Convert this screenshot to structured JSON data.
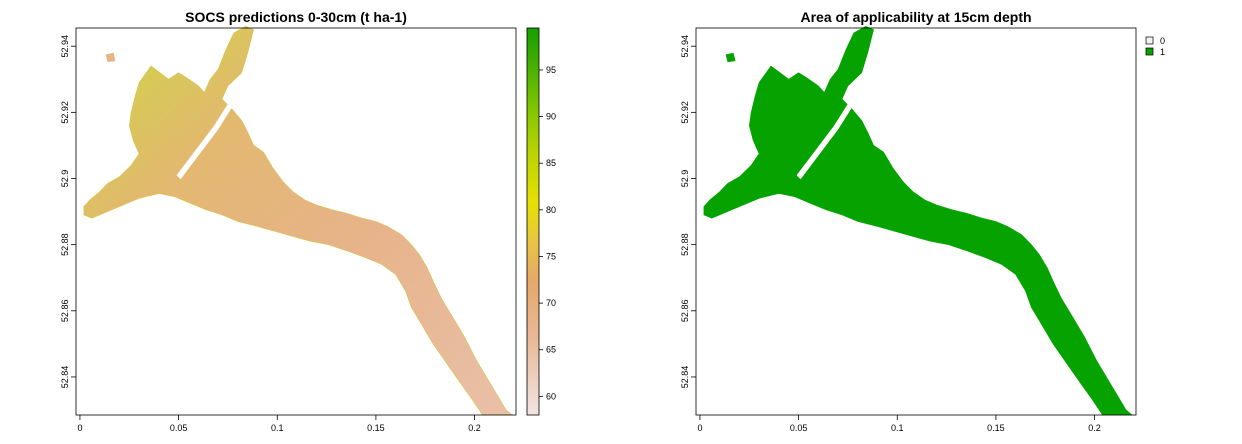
{
  "chart_data": [
    {
      "type": "heatmap",
      "title": "SOCS predictions 0-30cm (t ha-1)",
      "xlabel": "",
      "ylabel": "",
      "xlim": [
        -0.002,
        0.221
      ],
      "ylim": [
        52.8285,
        52.9455
      ],
      "x_ticks": [
        0,
        0.05,
        0.1,
        0.15,
        0.2
      ],
      "x_tick_labels": [
        "0",
        "0.05",
        "0.1",
        "0.15",
        "0.2"
      ],
      "y_ticks": [
        52.84,
        52.86,
        52.88,
        52.9,
        52.92,
        52.94
      ],
      "y_tick_labels": [
        "52.84",
        "52.86",
        "52.88",
        "52.9",
        "52.92",
        "52.94"
      ],
      "colorbar": {
        "range": [
          58,
          99.5
        ],
        "ticks": [
          60,
          65,
          70,
          75,
          80,
          85,
          90,
          95
        ],
        "tick_labels": [
          "60",
          "65",
          "70",
          "75",
          "80",
          "85",
          "90",
          "95"
        ],
        "colors": [
          "#f2e4e3",
          "#e8b896",
          "#e6a866",
          "#e8c640",
          "#e6e000",
          "#b8d400",
          "#7cc400",
          "#3cac00",
          "#14a000"
        ]
      }
    },
    {
      "type": "heatmap",
      "title": "Area of applicability at 15cm depth",
      "xlabel": "",
      "ylabel": "",
      "xlim": [
        -0.002,
        0.221
      ],
      "ylim": [
        52.8285,
        52.9455
      ],
      "x_ticks": [
        0,
        0.05,
        0.1,
        0.15,
        0.2
      ],
      "x_tick_labels": [
        "0",
        "0.05",
        "0.1",
        "0.15",
        "0.2"
      ],
      "y_ticks": [
        52.84,
        52.86,
        52.88,
        52.9,
        52.92,
        52.94
      ],
      "y_tick_labels": [
        "52.84",
        "52.86",
        "52.88",
        "52.9",
        "52.92",
        "52.94"
      ],
      "legend": {
        "placement": "top-right",
        "entries": [
          {
            "label": "0",
            "color": "#f2f2f2"
          },
          {
            "label": "1",
            "color": "#06a200"
          }
        ]
      }
    }
  ]
}
